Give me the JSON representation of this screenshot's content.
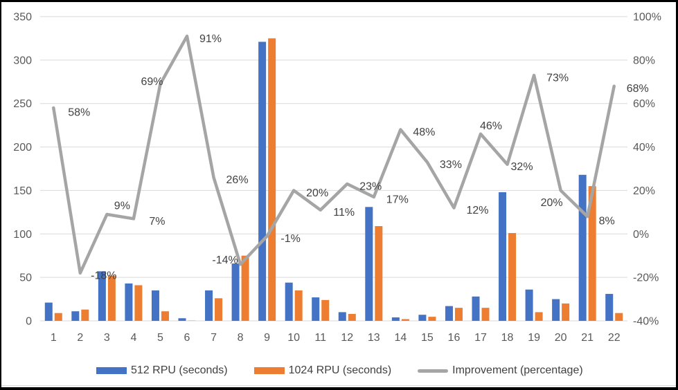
{
  "chart_data": {
    "type": "combo-bar-line",
    "title": "",
    "categories": [
      "1",
      "2",
      "3",
      "4",
      "5",
      "6",
      "7",
      "8",
      "9",
      "10",
      "11",
      "12",
      "13",
      "14",
      "15",
      "16",
      "17",
      "18",
      "19",
      "20",
      "21",
      "22"
    ],
    "series": [
      {
        "name": "512 RPU (seconds)",
        "type": "bar",
        "axis": "left",
        "color": "#4472C4",
        "values": [
          21,
          11,
          57,
          43,
          35,
          3,
          35,
          66,
          321,
          44,
          27,
          10,
          131,
          4,
          7,
          17,
          28,
          148,
          36,
          25,
          168,
          31
        ]
      },
      {
        "name": "1024 RPU (seconds)",
        "type": "bar",
        "axis": "left",
        "color": "#ED7D31",
        "values": [
          9,
          13,
          52,
          41,
          11,
          0.3,
          26,
          75,
          325,
          35,
          24,
          8,
          109,
          2,
          4.7,
          15,
          15,
          101,
          10,
          20,
          155,
          9
        ]
      },
      {
        "name": "Improvement (percentage)",
        "type": "line",
        "axis": "right",
        "color": "#A5A5A5",
        "values": [
          58,
          -18,
          9,
          7,
          69,
          91,
          26,
          -14,
          -1,
          20,
          11,
          23,
          17,
          48,
          33,
          12,
          46,
          32,
          73,
          20,
          8,
          68
        ],
        "point_labels": [
          "58%",
          "-18%",
          "9%",
          "7%",
          "69%",
          "91%",
          "26%",
          "-14%",
          "-1%",
          "20%",
          "11%",
          "23%",
          "17%",
          "48%",
          "33%",
          "12%",
          "46%",
          "32%",
          "73%",
          "20%",
          "8%",
          "68%"
        ]
      }
    ],
    "left_axis": {
      "min": 0,
      "max": 350,
      "step": 50,
      "ticks": [
        "0",
        "50",
        "100",
        "150",
        "200",
        "250",
        "300",
        "350"
      ]
    },
    "right_axis": {
      "min": -40,
      "max": 100,
      "step": 20,
      "ticks": [
        "-40%",
        "-20%",
        "0%",
        "20%",
        "40%",
        "60%",
        "80%",
        "100%"
      ]
    },
    "grid": true,
    "legend_position": "bottom",
    "colors": {
      "gridline": "#D9D9D9",
      "axis_text": "#595959",
      "data_label_text": "#404040",
      "background": "#FFFFFF",
      "border": "#000000"
    }
  },
  "legend": {
    "items": [
      {
        "label": "512 RPU (seconds)"
      },
      {
        "label": "1024 RPU (seconds)"
      },
      {
        "label": "Improvement (percentage)"
      }
    ]
  }
}
